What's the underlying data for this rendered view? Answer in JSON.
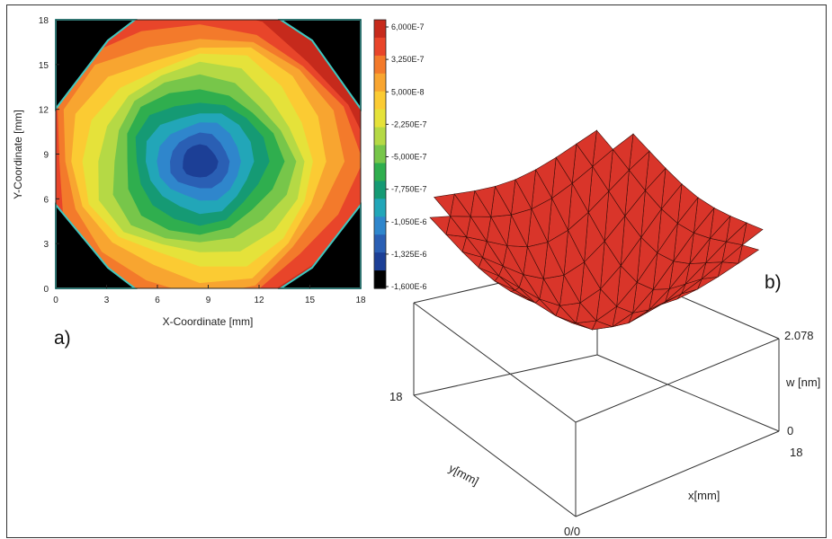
{
  "panels": {
    "a": "a)",
    "b": "b)"
  },
  "chart_data": [
    {
      "type": "heatmap",
      "subtype": "contour",
      "xlabel": "X-Coordinate [mm]",
      "ylabel": "Y-Coordinate [mm]",
      "xlim": [
        0,
        18
      ],
      "ylim": [
        0,
        18
      ],
      "x_ticks": [
        "0",
        "3",
        "6",
        "9",
        "12",
        "15",
        "18"
      ],
      "y_ticks": [
        "0",
        "3",
        "6",
        "9",
        "12",
        "15",
        "18"
      ],
      "colorbar": {
        "ticks": [
          "6,000E-7",
          "3,250E-7",
          "5,000E-8",
          "-2,250E-7",
          "-5,000E-7",
          "-7,750E-7",
          "-1,050E-6",
          "-1,325E-6",
          "-1,600E-6"
        ],
        "range": [
          -1.6e-06,
          6e-07
        ],
        "colors": [
          "#c62a1c",
          "#e8452a",
          "#f37a2b",
          "#f8a530",
          "#fbcb33",
          "#e5e23a",
          "#b5d945",
          "#77c64a",
          "#2fae4e",
          "#159a74",
          "#22a6b8",
          "#2f86cc",
          "#2a5fb4",
          "#1c3f96"
        ]
      },
      "minimum_center": [
        8.5,
        8.5
      ],
      "description_of_field": "concentric depression with minimum near center (approx -1.6E-6) rising to about 6E-7 at the edges; corners outside the octagonal membrane are black"
    },
    {
      "type": "surface3d",
      "xlabel": "x[mm]",
      "ylabel": "y[mm]",
      "zlabel": "w [nm]",
      "origin_label": "0/0",
      "x_max_label": "18",
      "y_max_label": "18",
      "z_ticks": [
        "0",
        "2.078"
      ],
      "color": "#d9352a"
    }
  ]
}
